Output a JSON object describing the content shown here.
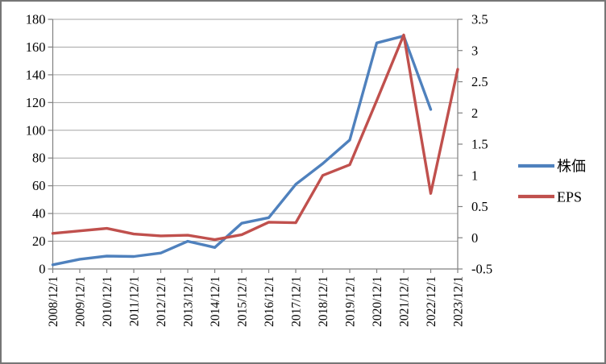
{
  "chart_data": {
    "type": "line",
    "x_labels": [
      "2008/12/1",
      "2009/12/1",
      "2010/12/1",
      "2011/12/1",
      "2012/12/1",
      "2013/12/1",
      "2014/12/1",
      "2015/12/1",
      "2016/12/1",
      "2017/12/1",
      "2018/12/1",
      "2019/12/1",
      "2020/12/1",
      "2021/12/1",
      "2022/12/1",
      "2023/12/1"
    ],
    "series": [
      {
        "name": "株価",
        "yaxis": "left",
        "color": "#4F81BD",
        "values": [
          3,
          7,
          9.3,
          9,
          11.5,
          20,
          15.5,
          33,
          37,
          61,
          76,
          93,
          163,
          168,
          115,
          null
        ]
      },
      {
        "name": "EPS",
        "yaxis": "right",
        "color": "#C0504D",
        "values": [
          0.07,
          0.11,
          0.15,
          0.06,
          0.03,
          0.04,
          -0.03,
          0.05,
          0.25,
          0.24,
          1.0,
          1.17,
          2.2,
          3.25,
          0.71,
          2.7
        ]
      }
    ],
    "left_axis": {
      "min": 0,
      "max": 180,
      "step": 20,
      "tick_labels": [
        "180",
        "160",
        "140",
        "120",
        "100",
        "80",
        "60",
        "40",
        "20",
        "0"
      ]
    },
    "right_axis": {
      "min": -0.5,
      "max": 3.5,
      "step": 0.5,
      "tick_labels": [
        "3.5",
        "3",
        "2.5",
        "2",
        "1.5",
        "1",
        "0.5",
        "0",
        "-0.5"
      ]
    },
    "grid": true,
    "legend_position": "right",
    "title": "",
    "xlabel": "",
    "ylabel": ""
  },
  "legend": {
    "items": [
      {
        "label": "株価",
        "color": "#4F81BD"
      },
      {
        "label": "EPS",
        "color": "#C0504D"
      }
    ]
  },
  "colors": {
    "series_stock_price": "#4F81BD",
    "series_eps": "#C0504D",
    "gridline": "#A6A6A6",
    "axis": "#808080",
    "background": "#FFFFFF",
    "border": "#767676"
  }
}
